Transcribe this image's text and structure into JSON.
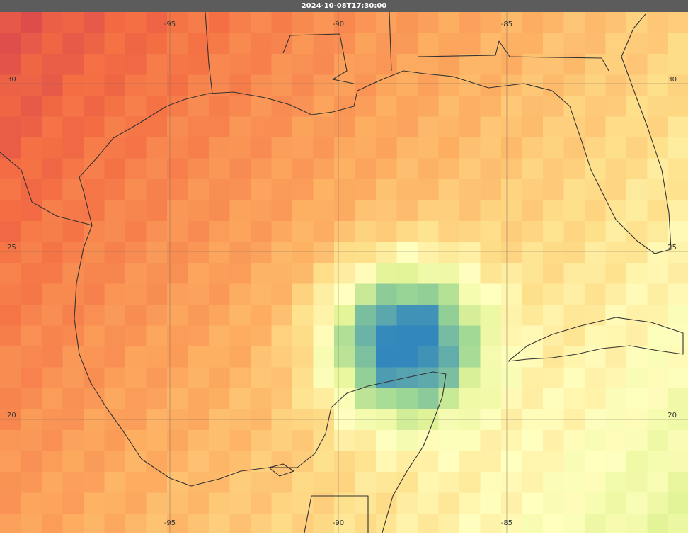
{
  "header": {
    "title": "2024-10-08T17:30:00"
  },
  "grid": {
    "lon_ticks": [
      -95,
      -90,
      -85
    ],
    "lat_ticks": [
      30,
      25,
      20
    ]
  }
}
